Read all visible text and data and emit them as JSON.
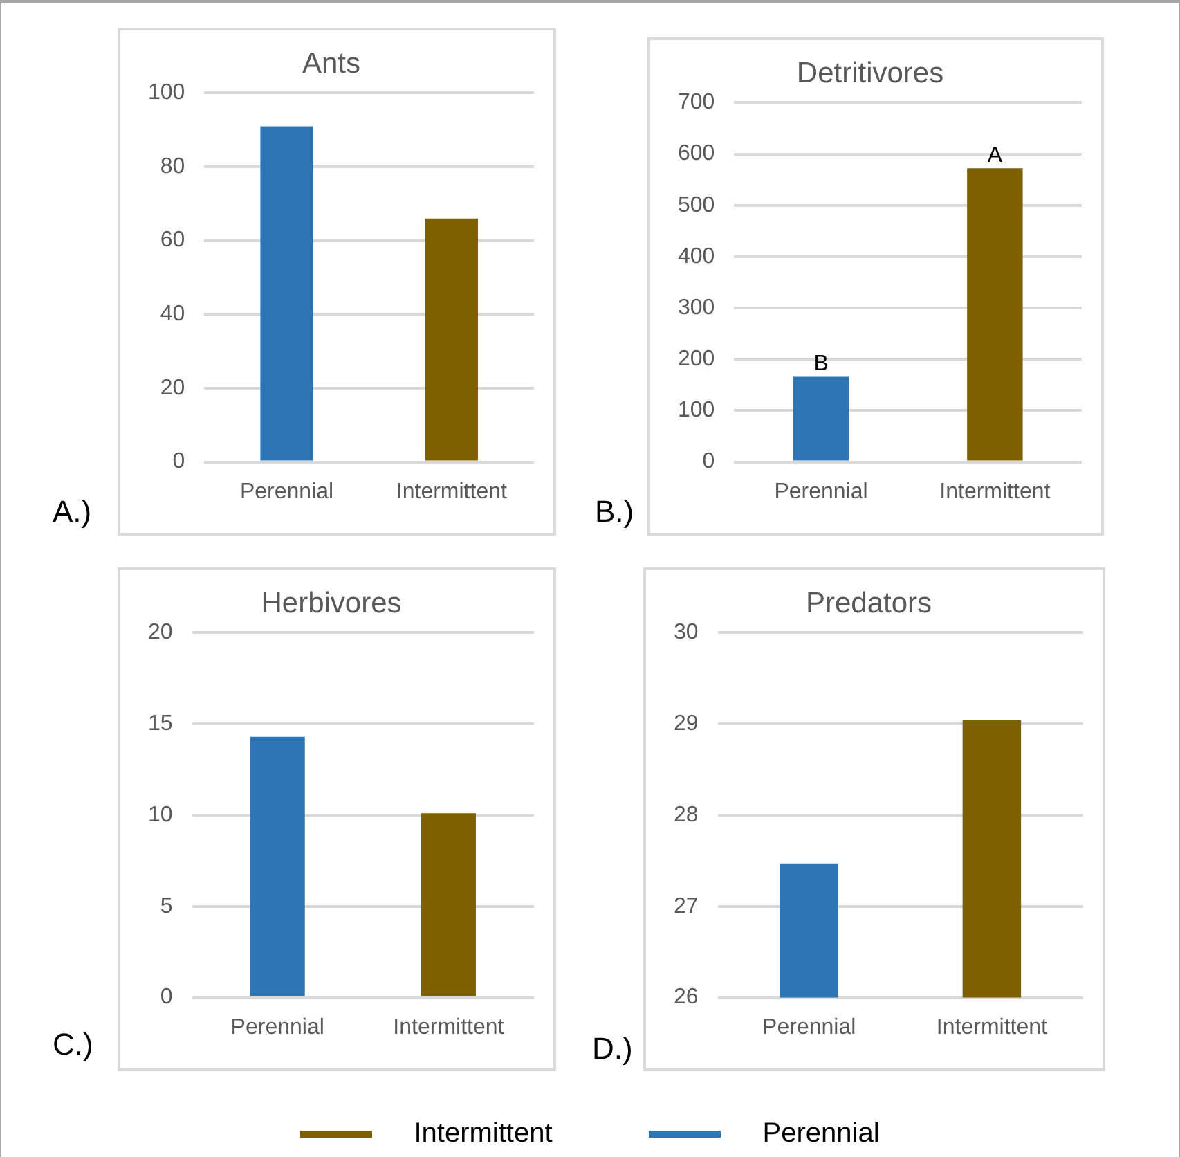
{
  "chart_data": [
    {
      "type": "bar",
      "title": "Ants",
      "categories": [
        "Perennial",
        "Intermittent"
      ],
      "series": [
        {
          "color": "#2e75b6",
          "values": [
            91,
            null
          ]
        },
        {
          "color": "#7f6000",
          "values": [
            null,
            66
          ]
        }
      ],
      "ylim": [
        0,
        100
      ],
      "yticks": [
        0,
        20,
        40,
        60,
        80,
        100
      ],
      "grid": "y",
      "annotations": [
        "A.)"
      ]
    },
    {
      "type": "bar",
      "title": "Detritivores",
      "categories": [
        "Perennial",
        "Intermittent"
      ],
      "series": [
        {
          "color": "#2e75b6",
          "values": [
            166,
            null
          ]
        },
        {
          "color": "#7f6000",
          "values": [
            null,
            572
          ]
        }
      ],
      "ylim": [
        0,
        700
      ],
      "yticks": [
        0,
        100,
        200,
        300,
        400,
        500,
        600,
        700
      ],
      "grid": "y",
      "annotations": [
        "B.)",
        {
          "text": "B",
          "x": "Perennial",
          "y": 166
        },
        {
          "text": "A",
          "x": "Intermittent",
          "y": 572
        }
      ]
    },
    {
      "type": "bar",
      "title": "Herbivores",
      "categories": [
        "Perennial",
        "Intermittent"
      ],
      "series": [
        {
          "color": "#2e75b6",
          "values": [
            14.3,
            null
          ]
        },
        {
          "color": "#7f6000",
          "values": [
            null,
            10.1
          ]
        }
      ],
      "ylim": [
        0,
        20
      ],
      "yticks": [
        0,
        5,
        10,
        15,
        20
      ],
      "grid": "y",
      "annotations": [
        "C.)"
      ]
    },
    {
      "type": "bar",
      "title": "Predators",
      "categories": [
        "Perennial",
        "Intermittent"
      ],
      "series": [
        {
          "name": "Perennial",
          "color": "#2e75b6",
          "values": [
            27.47,
            null
          ]
        },
        {
          "name": "Intermittent",
          "color": "#7f6000",
          "values": [
            null,
            29.04
          ]
        }
      ],
      "ylim": [
        26,
        30
      ],
      "yticks": [
        26,
        27,
        28,
        29,
        30
      ],
      "grid": "y",
      "legend": "bottom",
      "annotations": [
        "D.)"
      ]
    }
  ]
}
